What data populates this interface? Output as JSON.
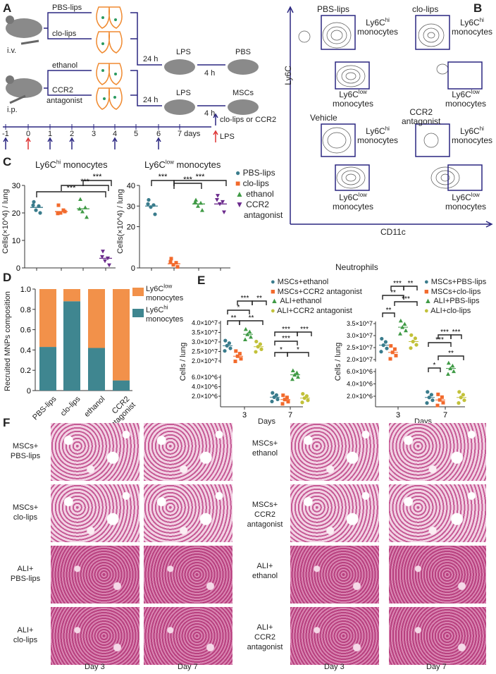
{
  "panel_labels": {
    "a": "A",
    "b": "B",
    "c": "C",
    "d": "D",
    "e": "E",
    "f": "F"
  },
  "panel_a": {
    "route_iv": "i.v.",
    "route_ip": "i.p.",
    "treat_1": "PBS-lips",
    "treat_2": "clo-lips",
    "treat_3": "ethanol",
    "treat_4": "CCR2",
    "treat_4b": "antagonist",
    "wait_24h": "24 h",
    "wait_4h": "4 h",
    "lps": "LPS",
    "result_top": "PBS",
    "result_bottom": "MSCs",
    "timeline": [
      "-1",
      "0",
      "1",
      "2",
      "3",
      "4",
      "5",
      "6",
      "7 days"
    ],
    "legend_injection": "clo-lips or CCR2",
    "legend_lps": "LPS"
  },
  "panel_b": {
    "y_axis": "Ly6C",
    "x_axis": "CD11c",
    "plots": [
      {
        "title": "PBS-lips",
        "title2": ""
      },
      {
        "title": "clo-lips",
        "title2": ""
      },
      {
        "title": "Vehicle",
        "title2": ""
      },
      {
        "title": "CCR2",
        "title2": "antagonist"
      }
    ],
    "gate_hi": "Ly6C",
    "gate_hi_sup": "hi",
    "gate_low": "Ly6C",
    "gate_low_sup": "low",
    "gate_suffix": "monocytes"
  },
  "colors": {
    "pbs": "#3a7c8c",
    "clo": "#f26a2c",
    "ethanol": "#3f9a45",
    "ccr2": "#6b2a8c",
    "ali_ccr2": "#c2c13a",
    "bar_low": "#f2914a",
    "bar_hi": "#3f8690",
    "axis": "#3a3480"
  },
  "chart_data": [
    {
      "type": "scatter",
      "title": "Ly6C",
      "title_sup": "hi",
      "title_rest": " monocytes",
      "ylabel": "Cells(×10^4) / lung",
      "ylim": [
        0,
        30
      ],
      "yticks": [
        "0",
        "10",
        "20",
        "30"
      ],
      "categories": [
        "PBS-lips",
        "clo-lips",
        "ethanol",
        "CCR2 antagonist"
      ],
      "means": [
        22,
        20.5,
        21.5,
        3.5
      ],
      "points": [
        [
          24,
          22.5,
          21,
          20,
          22.8
        ],
        [
          22.8,
          21,
          20,
          20.5,
          19.8
        ],
        [
          25,
          22,
          20.5,
          18.5,
          21.5
        ],
        [
          6,
          3.5,
          2.5,
          1,
          4
        ]
      ],
      "significance": [
        {
          "from": 0,
          "to": 3,
          "label": "***"
        },
        {
          "from": 1,
          "to": 3,
          "label": "***"
        },
        {
          "from": 2,
          "to": 3,
          "label": "***"
        }
      ]
    },
    {
      "type": "scatter",
      "title": "Ly6C",
      "title_sup": "low",
      "title_rest": " monocytes",
      "ylabel": "Cells(×10^4) / lung",
      "ylim": [
        0,
        40
      ],
      "yticks": [
        "0",
        "20",
        "30",
        "40"
      ],
      "categories": [
        "PBS-lips",
        "clo-lips",
        "ethanol",
        "CCR2 antagonist"
      ],
      "means": [
        30,
        2,
        31,
        31
      ],
      "points": [
        [
          33,
          30.5,
          29.5,
          26,
          31
        ],
        [
          4.5,
          2.5,
          1.5,
          0.5,
          3
        ],
        [
          33,
          31.5,
          30,
          28,
          32
        ],
        [
          35,
          32,
          31,
          27,
          33
        ]
      ],
      "significance": [
        {
          "from": 0,
          "to": 1,
          "label": "***"
        },
        {
          "from": 1,
          "to": 2,
          "label": "***"
        },
        {
          "from": 1,
          "to": 3,
          "label": "***"
        }
      ],
      "legend": [
        "PBS-lips",
        "clo-lips",
        "ethanol",
        "CCR2",
        "antagonist"
      ]
    },
    {
      "type": "bar",
      "stacked": true,
      "ylabel": "Recruited MNPs composition",
      "ylim": [
        0,
        1
      ],
      "yticks": [
        "0",
        "0.2",
        "0.4",
        "0.6",
        "0.8",
        "1.0"
      ],
      "categories": [
        "PBS-lips",
        "clo-lips",
        "ethanol",
        "CCR2 antagonist"
      ],
      "series": [
        {
          "name": "Ly6Chi monocytes",
          "values": [
            0.43,
            0.88,
            0.42,
            0.1
          ]
        },
        {
          "name": "Ly6Clow monocytes",
          "values": [
            0.57,
            0.12,
            0.58,
            0.9
          ]
        }
      ],
      "legend": [
        {
          "l": "Ly6C",
          "sup": "low",
          "l2": "monocytes"
        },
        {
          "l": "Ly6C",
          "sup": "hi",
          "l2": "monocytes"
        }
      ]
    },
    {
      "type": "scatter",
      "title": "Neutrophils",
      "ylabel": "Cells / lung",
      "xlabel": "Days",
      "xticks": [
        "3",
        "7"
      ],
      "yticks_top": [
        "2.0×10^7",
        "2.5×10^7",
        "3.0×10^7",
        "3.5×10^7",
        "4.0×10^7"
      ],
      "yticks_bottom": [
        "2.0×10^6",
        "4.0×10^6",
        "6.0×10^6"
      ],
      "series": [
        {
          "name": "MSCs+ethanol",
          "day3": 28000000.0,
          "day7": 1800000.0
        },
        {
          "name": "MSCs+CCR2 antagonist",
          "day3": 22500000.0,
          "day7": 1300000.0
        },
        {
          "name": "ALI+ethanol",
          "day3": 34000000.0,
          "day7": 6500000.0
        },
        {
          "name": "ALI+CCR2 antagonist",
          "day3": 27500000.0,
          "day7": 1600000.0
        }
      ],
      "significance_labels": [
        "***",
        "**",
        "*",
        "**",
        "**",
        "***",
        "***",
        "***",
        "*",
        "*"
      ]
    },
    {
      "type": "scatter",
      "title": "",
      "ylabel": "Cells / lung",
      "xlabel": "Days",
      "xticks": [
        "3",
        "7"
      ],
      "yticks_top": [
        "2.0×10^7",
        "2.5×10^7",
        "3.0×10^7",
        "3.5×10^7"
      ],
      "yticks_bottom": [
        "2.0×10^6",
        "4.0×10^6",
        "6.0×10^6"
      ],
      "series": [
        {
          "name": "MSCs+PBS-lips",
          "day3": 26000000.0,
          "day7": 1800000.0
        },
        {
          "name": "MSCs+clo-lips",
          "day3": 23000000.0,
          "day7": 1400000.0
        },
        {
          "name": "ALI+PBS-lips",
          "day3": 33500000.0,
          "day7": 6500000.0
        },
        {
          "name": "ALI+clo-lips",
          "day3": 27500000.0,
          "day7": 1800000.0
        }
      ],
      "significance_labels": [
        "***",
        "**",
        "**",
        "***",
        "**",
        "***",
        "***",
        "***",
        "**",
        "*"
      ]
    }
  ],
  "panel_f": {
    "left_rows": [
      [
        "MSCs+",
        "PBS-lips"
      ],
      [
        "MSCs+",
        "clo-lips"
      ],
      [
        "ALI+",
        "PBS-lips"
      ],
      [
        "ALI+",
        "clo-lips"
      ]
    ],
    "right_rows": [
      [
        "MSCs+",
        "ethanol"
      ],
      [
        "MSCs+",
        "CCR2",
        "antagonist"
      ],
      [
        "ALI+",
        "ethanol"
      ],
      [
        "ALI+",
        "CCR2",
        "antagonist"
      ]
    ],
    "day3": "Day 3",
    "day7": "Day 7"
  }
}
